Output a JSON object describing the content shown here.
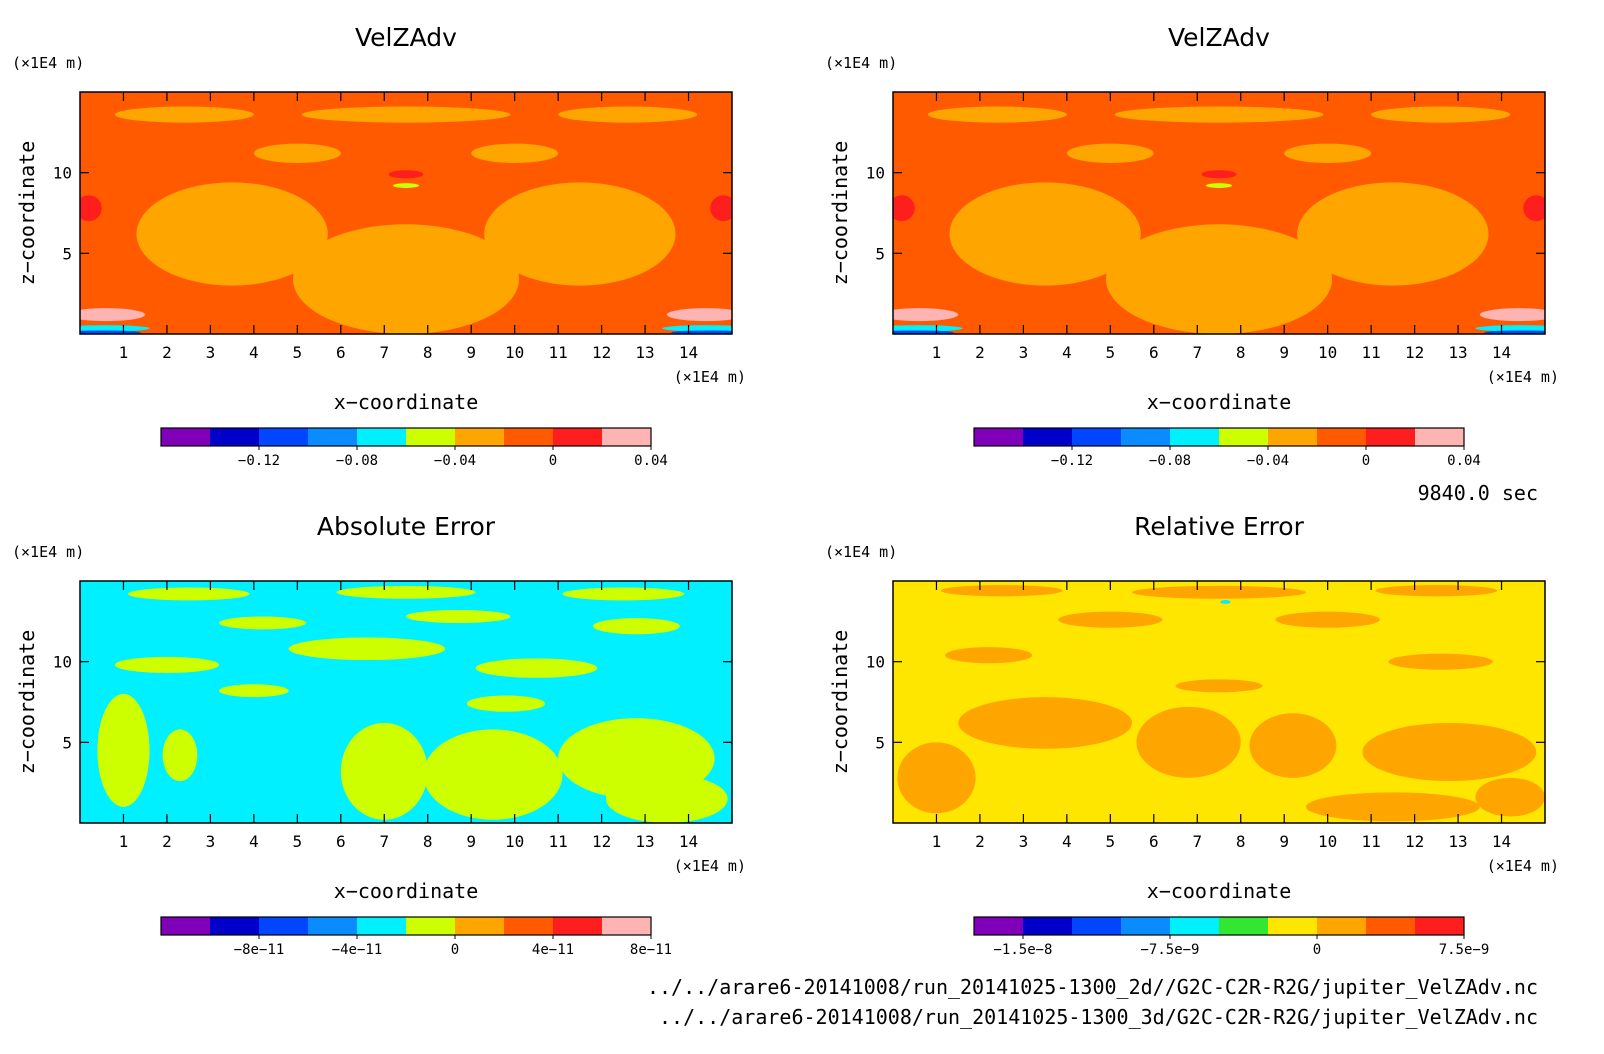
{
  "time_label": "9840.0 sec",
  "file_paths": [
    "../../arare6-20141008/run_20141025-1300_2d//G2C-C2R-R2G/jupiter_VelZAdv.nc",
    "../../arare6-20141008/run_20141025-1300_3d/G2C-C2R-R2G/jupiter_VelZAdv.nc"
  ],
  "colors": {
    "purple": "#7f00b8",
    "navy": "#0000c8",
    "blue": "#0046ff",
    "azure": "#0a8cff",
    "cyan": "#00f0ff",
    "lime": "#cdff00",
    "green": "#32e632",
    "yellow": "#ffe600",
    "amber": "#ffa500",
    "orange": "#ff5a00",
    "red": "#ff1e1e",
    "pink": "#ffb4b4"
  },
  "chart_data": [
    {
      "type": "heatmap",
      "title": "VelZAdv",
      "xlabel": "x−coordinate",
      "ylabel": "z−coordinate",
      "x_unit": "(×1E4 m)",
      "y_unit": "(×1E4 m)",
      "xlim": [
        0,
        15
      ],
      "ylim": [
        0,
        15
      ],
      "x_ticks": [
        "1",
        "2",
        "3",
        "4",
        "5",
        "6",
        "7",
        "8",
        "9",
        "10",
        "11",
        "12",
        "13",
        "14"
      ],
      "y_ticks": [
        "5",
        "10"
      ],
      "colorbar": {
        "colors": [
          "#7f00b8",
          "#0000c8",
          "#0046ff",
          "#0a8cff",
          "#00f0ff",
          "#cdff00",
          "#ffa500",
          "#ff5a00",
          "#ff1e1e",
          "#ffb4b4"
        ],
        "labels": [
          "−0.12",
          "−0.08",
          "−0.04",
          "0",
          "0.04"
        ],
        "label_after_index": [
          1,
          3,
          5,
          7,
          9
        ]
      },
      "field": {
        "background": "#ff5a00",
        "blobs": [
          {
            "color": "#ffa500",
            "x": 3.5,
            "z": 6.2,
            "rx": 2.2,
            "rz": 3.2
          },
          {
            "color": "#ffa500",
            "x": 7.5,
            "z": 3.4,
            "rx": 2.6,
            "rz": 3.4
          },
          {
            "color": "#ffa500",
            "x": 11.5,
            "z": 6.2,
            "rx": 2.2,
            "rz": 3.2
          },
          {
            "color": "#ffa500",
            "x": 2.4,
            "z": 13.6,
            "rx": 1.6,
            "rz": 0.5
          },
          {
            "color": "#ffa500",
            "x": 7.5,
            "z": 13.6,
            "rx": 2.4,
            "rz": 0.5
          },
          {
            "color": "#ffa500",
            "x": 12.6,
            "z": 13.6,
            "rx": 1.6,
            "rz": 0.5
          },
          {
            "color": "#ffa500",
            "x": 5.0,
            "z": 11.2,
            "rx": 1.0,
            "rz": 0.6
          },
          {
            "color": "#ffa500",
            "x": 10.0,
            "z": 11.2,
            "rx": 1.0,
            "rz": 0.6
          },
          {
            "color": "#ff1e1e",
            "x": 7.5,
            "z": 9.9,
            "rx": 0.4,
            "rz": 0.25
          },
          {
            "color": "#cdff00",
            "x": 7.5,
            "z": 9.2,
            "rx": 0.3,
            "rz": 0.15
          },
          {
            "color": "#ff1e1e",
            "x": 0.2,
            "z": 7.8,
            "rx": 0.3,
            "rz": 0.8
          },
          {
            "color": "#ff1e1e",
            "x": 14.8,
            "z": 7.8,
            "rx": 0.3,
            "rz": 0.8
          },
          {
            "color": "#ffb4b4",
            "x": 0.6,
            "z": 1.2,
            "rx": 0.9,
            "rz": 0.4
          },
          {
            "color": "#ffb4b4",
            "x": 14.4,
            "z": 1.2,
            "rx": 0.9,
            "rz": 0.4
          },
          {
            "color": "#00f0ff",
            "x": 0.6,
            "z": 0.35,
            "rx": 1.0,
            "rz": 0.2
          },
          {
            "color": "#00f0ff",
            "x": 14.4,
            "z": 0.35,
            "rx": 1.0,
            "rz": 0.2
          },
          {
            "color": "#0046ff",
            "x": 0.5,
            "z": 0.1,
            "rx": 0.9,
            "rz": 0.12
          },
          {
            "color": "#0046ff",
            "x": 14.5,
            "z": 0.1,
            "rx": 0.9,
            "rz": 0.12
          }
        ]
      }
    },
    {
      "type": "heatmap",
      "title": "VelZAdv",
      "xlabel": "x−coordinate",
      "ylabel": "z−coordinate",
      "x_unit": "(×1E4 m)",
      "y_unit": "(×1E4 m)",
      "xlim": [
        0,
        15
      ],
      "ylim": [
        0,
        15
      ],
      "x_ticks": [
        "1",
        "2",
        "3",
        "4",
        "5",
        "6",
        "7",
        "8",
        "9",
        "10",
        "11",
        "12",
        "13",
        "14"
      ],
      "y_ticks": [
        "5",
        "10"
      ],
      "colorbar": {
        "colors": [
          "#7f00b8",
          "#0000c8",
          "#0046ff",
          "#0a8cff",
          "#00f0ff",
          "#cdff00",
          "#ffa500",
          "#ff5a00",
          "#ff1e1e",
          "#ffb4b4"
        ],
        "labels": [
          "−0.12",
          "−0.08",
          "−0.04",
          "0",
          "0.04"
        ],
        "label_after_index": [
          1,
          3,
          5,
          7,
          9
        ]
      },
      "field": {
        "background": "#ff5a00",
        "blobs": [
          {
            "color": "#ffa500",
            "x": 3.5,
            "z": 6.2,
            "rx": 2.2,
            "rz": 3.2
          },
          {
            "color": "#ffa500",
            "x": 7.5,
            "z": 3.4,
            "rx": 2.6,
            "rz": 3.4
          },
          {
            "color": "#ffa500",
            "x": 11.5,
            "z": 6.2,
            "rx": 2.2,
            "rz": 3.2
          },
          {
            "color": "#ffa500",
            "x": 2.4,
            "z": 13.6,
            "rx": 1.6,
            "rz": 0.5
          },
          {
            "color": "#ffa500",
            "x": 7.5,
            "z": 13.6,
            "rx": 2.4,
            "rz": 0.5
          },
          {
            "color": "#ffa500",
            "x": 12.6,
            "z": 13.6,
            "rx": 1.6,
            "rz": 0.5
          },
          {
            "color": "#ffa500",
            "x": 5.0,
            "z": 11.2,
            "rx": 1.0,
            "rz": 0.6
          },
          {
            "color": "#ffa500",
            "x": 10.0,
            "z": 11.2,
            "rx": 1.0,
            "rz": 0.6
          },
          {
            "color": "#ff1e1e",
            "x": 7.5,
            "z": 9.9,
            "rx": 0.4,
            "rz": 0.25
          },
          {
            "color": "#cdff00",
            "x": 7.5,
            "z": 9.2,
            "rx": 0.3,
            "rz": 0.15
          },
          {
            "color": "#ff1e1e",
            "x": 0.2,
            "z": 7.8,
            "rx": 0.3,
            "rz": 0.8
          },
          {
            "color": "#ff1e1e",
            "x": 14.8,
            "z": 7.8,
            "rx": 0.3,
            "rz": 0.8
          },
          {
            "color": "#ffb4b4",
            "x": 0.6,
            "z": 1.2,
            "rx": 0.9,
            "rz": 0.4
          },
          {
            "color": "#ffb4b4",
            "x": 14.4,
            "z": 1.2,
            "rx": 0.9,
            "rz": 0.4
          },
          {
            "color": "#00f0ff",
            "x": 0.6,
            "z": 0.35,
            "rx": 1.0,
            "rz": 0.2
          },
          {
            "color": "#00f0ff",
            "x": 14.4,
            "z": 0.35,
            "rx": 1.0,
            "rz": 0.2
          },
          {
            "color": "#0046ff",
            "x": 0.5,
            "z": 0.1,
            "rx": 0.9,
            "rz": 0.12
          },
          {
            "color": "#0046ff",
            "x": 14.5,
            "z": 0.1,
            "rx": 0.9,
            "rz": 0.12
          }
        ]
      }
    },
    {
      "type": "heatmap",
      "title": "Absolute Error",
      "xlabel": "x−coordinate",
      "ylabel": "z−coordinate",
      "x_unit": "(×1E4 m)",
      "y_unit": "(×1E4 m)",
      "xlim": [
        0,
        15
      ],
      "ylim": [
        0,
        15
      ],
      "x_ticks": [
        "1",
        "2",
        "3",
        "4",
        "5",
        "6",
        "7",
        "8",
        "9",
        "10",
        "11",
        "12",
        "13",
        "14"
      ],
      "y_ticks": [
        "5",
        "10"
      ],
      "colorbar": {
        "colors": [
          "#7f00b8",
          "#0000c8",
          "#0046ff",
          "#0a8cff",
          "#00f0ff",
          "#cdff00",
          "#ffa500",
          "#ff5a00",
          "#ff1e1e",
          "#ffb4b4"
        ],
        "labels": [
          "−8e−11",
          "−4e−11",
          "0",
          "4e−11",
          "8e−11"
        ],
        "label_after_index": [
          1,
          3,
          5,
          7,
          9
        ]
      },
      "field": {
        "background": "#00f0ff",
        "blobs": [
          {
            "color": "#cdff00",
            "x": 7.0,
            "z": 3.2,
            "rx": 1.0,
            "rz": 3.0
          },
          {
            "color": "#cdff00",
            "x": 9.5,
            "z": 3.0,
            "rx": 1.6,
            "rz": 2.8
          },
          {
            "color": "#cdff00",
            "x": 12.8,
            "z": 4.0,
            "rx": 1.8,
            "rz": 2.5
          },
          {
            "color": "#cdff00",
            "x": 13.5,
            "z": 1.5,
            "rx": 1.4,
            "rz": 1.5
          },
          {
            "color": "#cdff00",
            "x": 1.0,
            "z": 4.5,
            "rx": 0.6,
            "rz": 3.5
          },
          {
            "color": "#cdff00",
            "x": 2.3,
            "z": 4.2,
            "rx": 0.4,
            "rz": 1.6
          },
          {
            "color": "#cdff00",
            "x": 6.6,
            "z": 10.8,
            "rx": 1.8,
            "rz": 0.7
          },
          {
            "color": "#cdff00",
            "x": 10.5,
            "z": 9.6,
            "rx": 1.4,
            "rz": 0.6
          },
          {
            "color": "#cdff00",
            "x": 2.0,
            "z": 9.8,
            "rx": 1.2,
            "rz": 0.5
          },
          {
            "color": "#cdff00",
            "x": 4.2,
            "z": 12.4,
            "rx": 1.0,
            "rz": 0.4
          },
          {
            "color": "#cdff00",
            "x": 8.7,
            "z": 12.8,
            "rx": 1.2,
            "rz": 0.4
          },
          {
            "color": "#cdff00",
            "x": 12.8,
            "z": 12.2,
            "rx": 1.0,
            "rz": 0.5
          },
          {
            "color": "#cdff00",
            "x": 2.5,
            "z": 14.2,
            "rx": 1.4,
            "rz": 0.4
          },
          {
            "color": "#cdff00",
            "x": 7.5,
            "z": 14.3,
            "rx": 1.6,
            "rz": 0.4
          },
          {
            "color": "#cdff00",
            "x": 12.5,
            "z": 14.2,
            "rx": 1.4,
            "rz": 0.4
          },
          {
            "color": "#cdff00",
            "x": 9.8,
            "z": 7.4,
            "rx": 0.9,
            "rz": 0.5
          },
          {
            "color": "#cdff00",
            "x": 4.0,
            "z": 8.2,
            "rx": 0.8,
            "rz": 0.4
          }
        ]
      }
    },
    {
      "type": "heatmap",
      "title": "Relative Error",
      "xlabel": "x−coordinate",
      "ylabel": "z−coordinate",
      "x_unit": "(×1E4 m)",
      "y_unit": "(×1E4 m)",
      "xlim": [
        0,
        15
      ],
      "ylim": [
        0,
        15
      ],
      "x_ticks": [
        "1",
        "2",
        "3",
        "4",
        "5",
        "6",
        "7",
        "8",
        "9",
        "10",
        "11",
        "12",
        "13",
        "14"
      ],
      "y_ticks": [
        "5",
        "10"
      ],
      "colorbar": {
        "colors": [
          "#7f00b8",
          "#0000c8",
          "#0046ff",
          "#0a8cff",
          "#00f0ff",
          "#32e632",
          "#ffe600",
          "#ffa500",
          "#ff5a00",
          "#ff1e1e"
        ],
        "labels": [
          "−1.5e−8",
          "−7.5e−9",
          "0",
          "7.5e−9"
        ],
        "label_after_index": [
          0,
          3,
          6,
          9
        ]
      },
      "field": {
        "background": "#ffe600",
        "blobs": [
          {
            "color": "#ffa500",
            "x": 3.5,
            "z": 6.2,
            "rx": 2.0,
            "rz": 1.6
          },
          {
            "color": "#ffa500",
            "x": 6.8,
            "z": 5.0,
            "rx": 1.2,
            "rz": 2.2
          },
          {
            "color": "#ffa500",
            "x": 9.2,
            "z": 4.8,
            "rx": 1.0,
            "rz": 2.0
          },
          {
            "color": "#ffa500",
            "x": 12.8,
            "z": 4.4,
            "rx": 2.0,
            "rz": 1.8
          },
          {
            "color": "#ffa500",
            "x": 1.0,
            "z": 2.8,
            "rx": 0.9,
            "rz": 2.2
          },
          {
            "color": "#ffa500",
            "x": 14.2,
            "z": 1.6,
            "rx": 0.8,
            "rz": 1.2
          },
          {
            "color": "#ffa500",
            "x": 11.5,
            "z": 1.0,
            "rx": 2.0,
            "rz": 0.9
          },
          {
            "color": "#ffa500",
            "x": 2.2,
            "z": 10.4,
            "rx": 1.0,
            "rz": 0.5
          },
          {
            "color": "#ffa500",
            "x": 5.0,
            "z": 12.6,
            "rx": 1.2,
            "rz": 0.5
          },
          {
            "color": "#ffa500",
            "x": 10.0,
            "z": 12.6,
            "rx": 1.2,
            "rz": 0.5
          },
          {
            "color": "#ffa500",
            "x": 12.6,
            "z": 10.0,
            "rx": 1.2,
            "rz": 0.5
          },
          {
            "color": "#ffa500",
            "x": 7.5,
            "z": 8.5,
            "rx": 1.0,
            "rz": 0.4
          },
          {
            "color": "#ffa500",
            "x": 7.5,
            "z": 14.3,
            "rx": 2.0,
            "rz": 0.4
          },
          {
            "color": "#ffa500",
            "x": 2.5,
            "z": 14.4,
            "rx": 1.4,
            "rz": 0.35
          },
          {
            "color": "#ffa500",
            "x": 12.5,
            "z": 14.4,
            "rx": 1.4,
            "rz": 0.35
          },
          {
            "color": "#00f0ff",
            "x": 7.65,
            "z": 13.7,
            "rx": 0.12,
            "rz": 0.12
          }
        ]
      }
    }
  ]
}
